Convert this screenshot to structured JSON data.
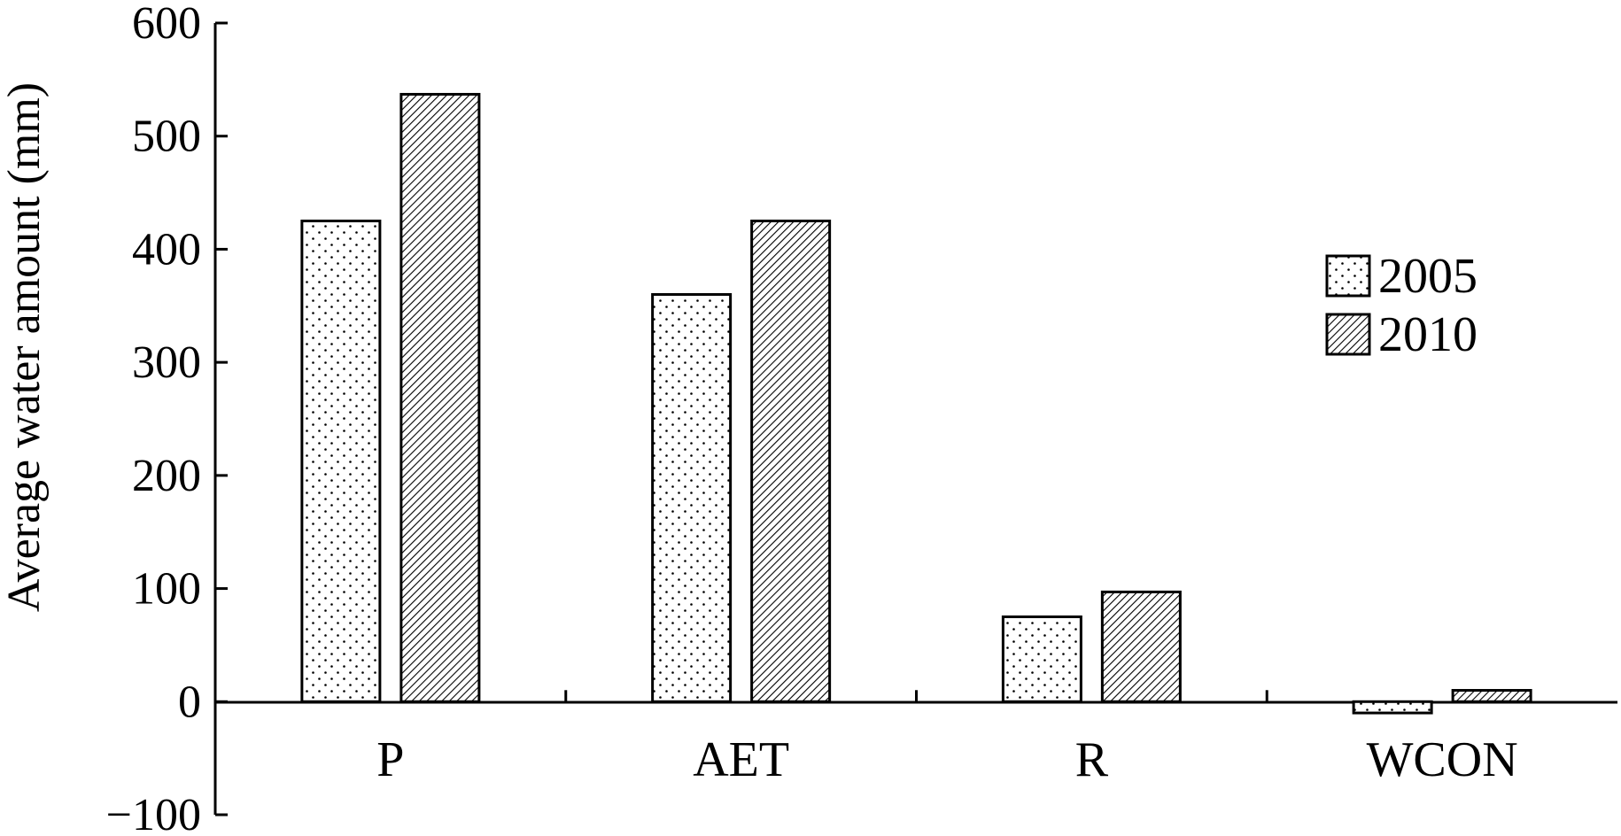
{
  "chart_data": {
    "type": "bar",
    "title": "",
    "xlabel": "",
    "ylabel": "Average water amount (mm)",
    "ylim": [
      -100,
      600
    ],
    "yticks": [
      -100,
      0,
      100,
      200,
      300,
      400,
      500,
      600
    ],
    "ytick_labels": [
      "−100",
      "0",
      "100",
      "200",
      "300",
      "400",
      "500",
      "600"
    ],
    "categories": [
      "P",
      "AET",
      "R",
      "WCON"
    ],
    "series": [
      {
        "name": "2005",
        "pattern": "dots",
        "values": [
          425,
          360,
          75,
          -10
        ]
      },
      {
        "name": "2010",
        "pattern": "hatch",
        "values": [
          537,
          425,
          97,
          10
        ]
      }
    ],
    "legend_position": "right",
    "grid": false,
    "colors": {
      "bar_fill": "#ffffff",
      "stroke": "#000000"
    }
  }
}
